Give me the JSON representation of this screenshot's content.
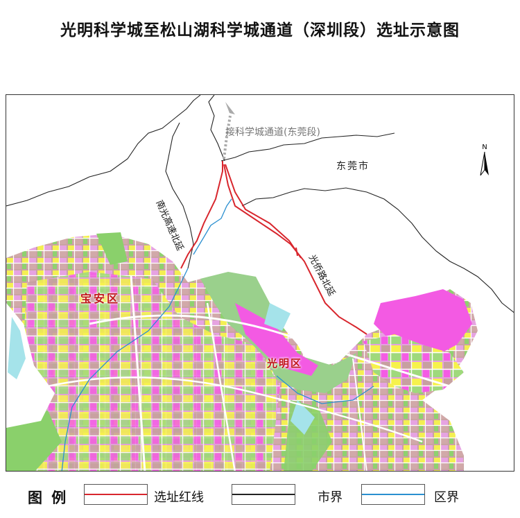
{
  "title": "光明科学城至松山湖科学城通道（深圳段）选址示意图",
  "map": {
    "districts": [
      "宝安区",
      "光明区"
    ],
    "city": "东莞市",
    "connection": "接科学城通道(东莞段)",
    "roads": [
      "南光高速北延",
      "光侨路北延"
    ],
    "north": "N"
  },
  "colors": {
    "route": "#d8262d",
    "city_boundary": "#222222",
    "district_boundary": "#2a8fd0",
    "residential": "#c8a0a0",
    "industrial": "#e3a0e0",
    "commercial": "#f35ae3",
    "green": "#8ad06b",
    "yellow": "#f6f24c",
    "road_white": "#ffffff"
  },
  "legend": {
    "title": "图 例",
    "items": [
      {
        "label": "选址红线",
        "color": "#d8262d"
      },
      {
        "label": "市界",
        "color": "#222222"
      },
      {
        "label": "区界",
        "color": "#2a8fd0"
      }
    ]
  }
}
